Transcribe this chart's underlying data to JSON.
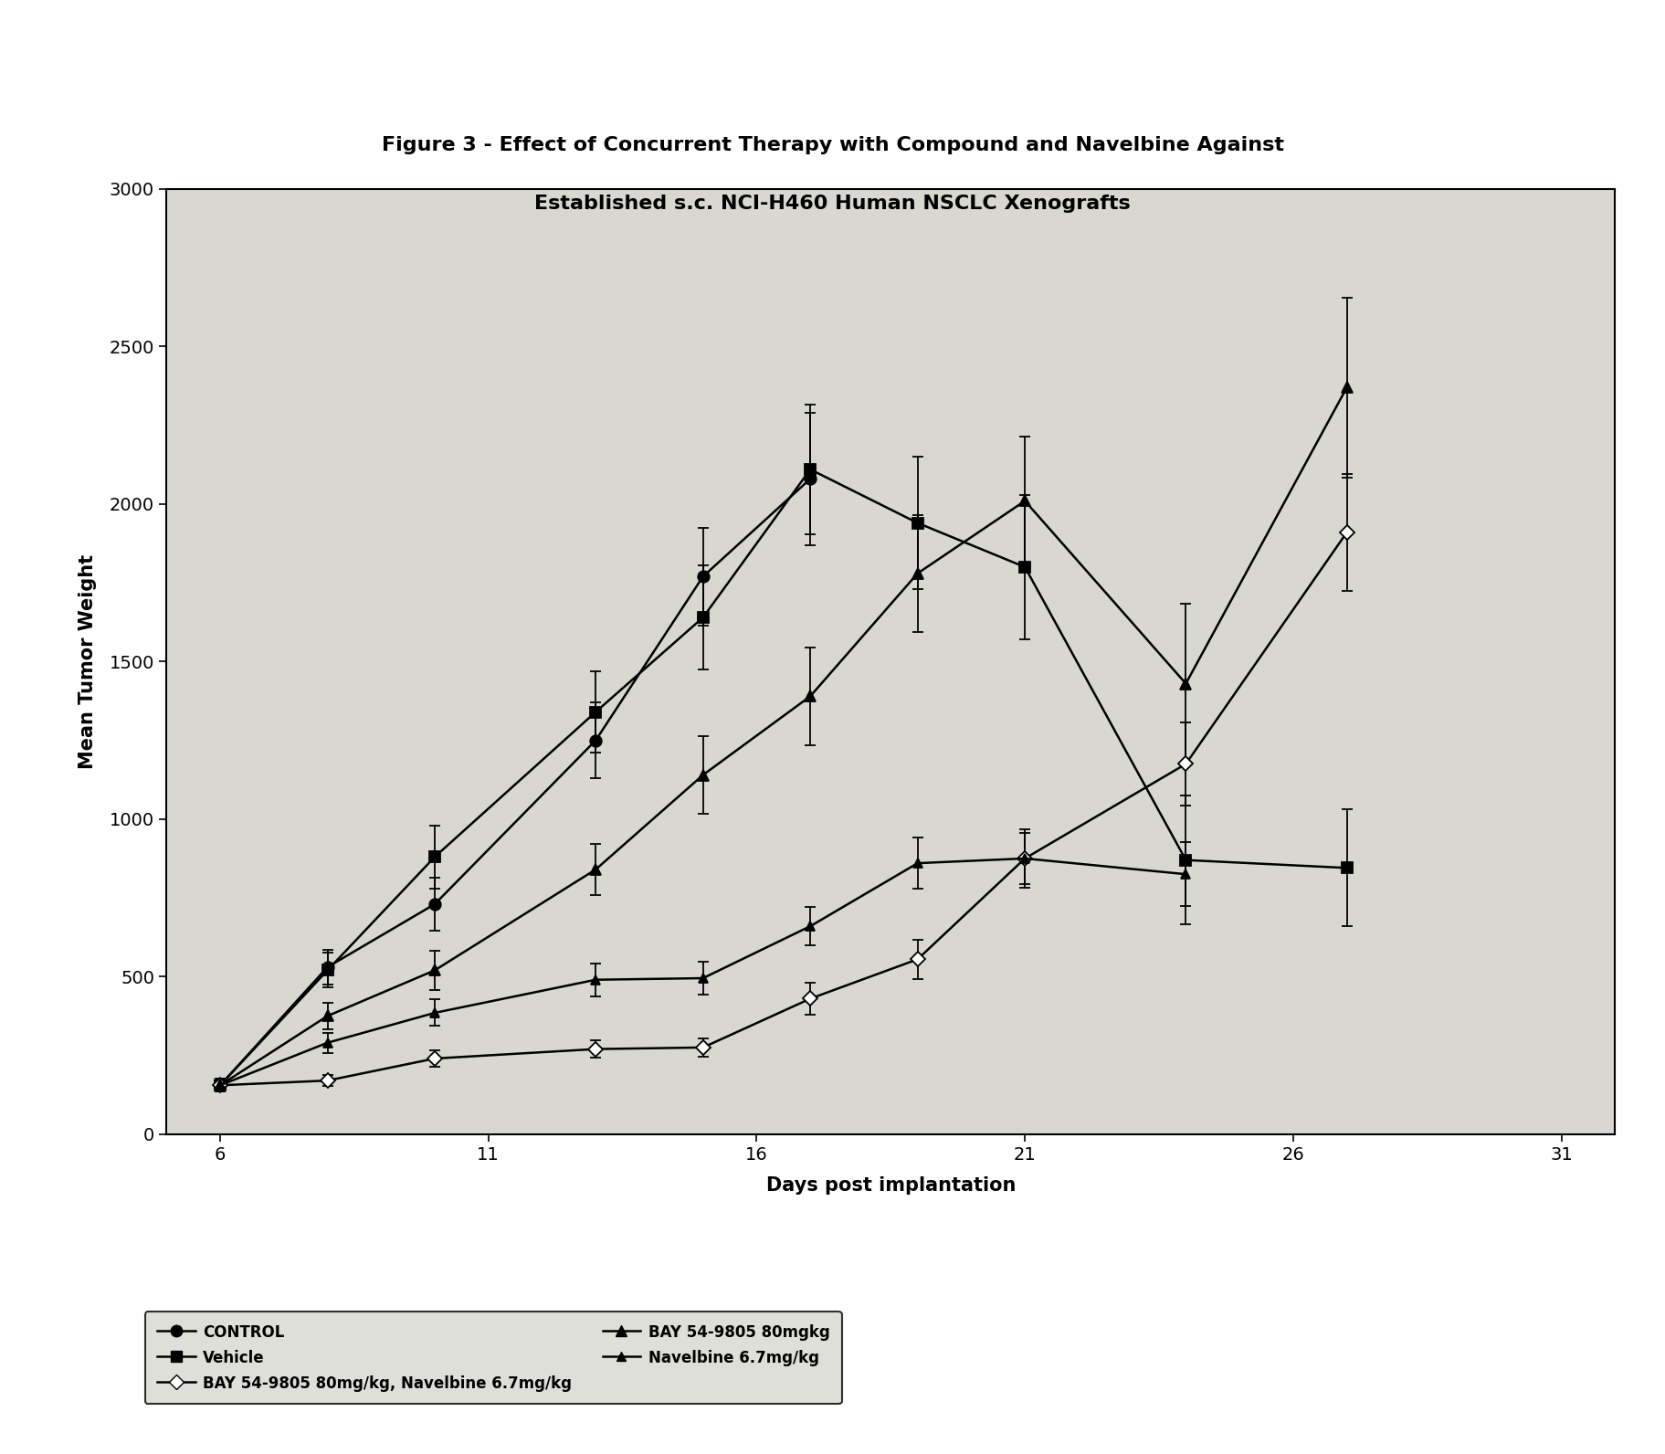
{
  "title_line1": "Figure 3 - Effect of Concurrent Therapy with Compound and Navelbine Against",
  "title_line2": "Established s.c. NCI-H460 Human NSCLC Xenografts",
  "xlabel": "Days post implantation",
  "ylabel": "Mean Tumor Weight",
  "xlim": [
    5,
    32
  ],
  "ylim": [
    0,
    3000
  ],
  "xticks": [
    6,
    11,
    16,
    21,
    26,
    31
  ],
  "yticks": [
    0,
    500,
    1000,
    1500,
    2000,
    2500,
    3000
  ],
  "title_fontsize": 16,
  "axis_label_fontsize": 15,
  "tick_fontsize": 14,
  "legend_fontsize": 12,
  "series": [
    {
      "label": "CONTROL",
      "marker": "o",
      "markerfacecolor": "black",
      "markeredgecolor": "black",
      "color": "black",
      "x": [
        6,
        8,
        10,
        13,
        15,
        17
      ],
      "y": [
        155,
        530,
        730,
        1250,
        1770,
        2080
      ],
      "yerr": [
        20,
        55,
        85,
        120,
        155,
        210
      ]
    },
    {
      "label": "Vehicle",
      "marker": "s",
      "markerfacecolor": "black",
      "markeredgecolor": "black",
      "color": "black",
      "x": [
        6,
        8,
        10,
        13,
        15,
        17,
        19,
        21,
        24,
        27
      ],
      "y": [
        155,
        520,
        880,
        1340,
        1640,
        2110,
        1940,
        1800,
        870,
        845
      ],
      "yerr": [
        20,
        55,
        100,
        130,
        165,
        205,
        210,
        230,
        205,
        185
      ]
    },
    {
      "label": "BAY 54-9805 80mg/kg, Navelbine 6.7mg/kg",
      "marker": "D",
      "markerfacecolor": "white",
      "markeredgecolor": "black",
      "color": "black",
      "x": [
        6,
        8,
        10,
        13,
        15,
        17,
        19,
        21,
        24,
        27
      ],
      "y": [
        155,
        170,
        240,
        270,
        275,
        430,
        555,
        875,
        1175,
        1910
      ],
      "yerr": [
        15,
        18,
        25,
        28,
        28,
        50,
        62,
        82,
        132,
        185
      ]
    },
    {
      "label": "BAY 54-9805 80mgkg",
      "marker": "^",
      "markerfacecolor": "black",
      "markeredgecolor": "black",
      "color": "black",
      "x": [
        6,
        8,
        10,
        13,
        15,
        17,
        19,
        21,
        24,
        27
      ],
      "y": [
        155,
        375,
        520,
        840,
        1140,
        1390,
        1780,
        2010,
        1430,
        2370
      ],
      "yerr": [
        15,
        42,
        62,
        82,
        122,
        155,
        185,
        205,
        255,
        285
      ]
    },
    {
      "label": "Navelbine 6.7mg/kg",
      "marker": "^",
      "markerfacecolor": "black",
      "markeredgecolor": "black",
      "color": "black",
      "marker_small": true,
      "x": [
        6,
        8,
        10,
        13,
        15,
        17,
        19,
        21,
        24
      ],
      "y": [
        155,
        290,
        385,
        490,
        495,
        660,
        860,
        875,
        825
      ],
      "yerr": [
        15,
        32,
        42,
        52,
        52,
        62,
        82,
        92,
        102
      ]
    }
  ],
  "legend_order": [
    "CONTROL",
    "Vehicle",
    "BAY 54-9805 80mg/kg, Navelbine 6.7mg/kg",
    "BAY 54-9805 80mgkg",
    "Navelbine 6.7mg/kg"
  ],
  "legend_ncols": 2,
  "legend_col1": [
    "CONTROL",
    "BAY 54-9805 80mg/kg, Navelbine 6.7mg/kg",
    "Navelbine 6.7mg/kg"
  ],
  "legend_col2": [
    "Vehicle",
    "BAY 54-9805 80mgkg"
  ]
}
